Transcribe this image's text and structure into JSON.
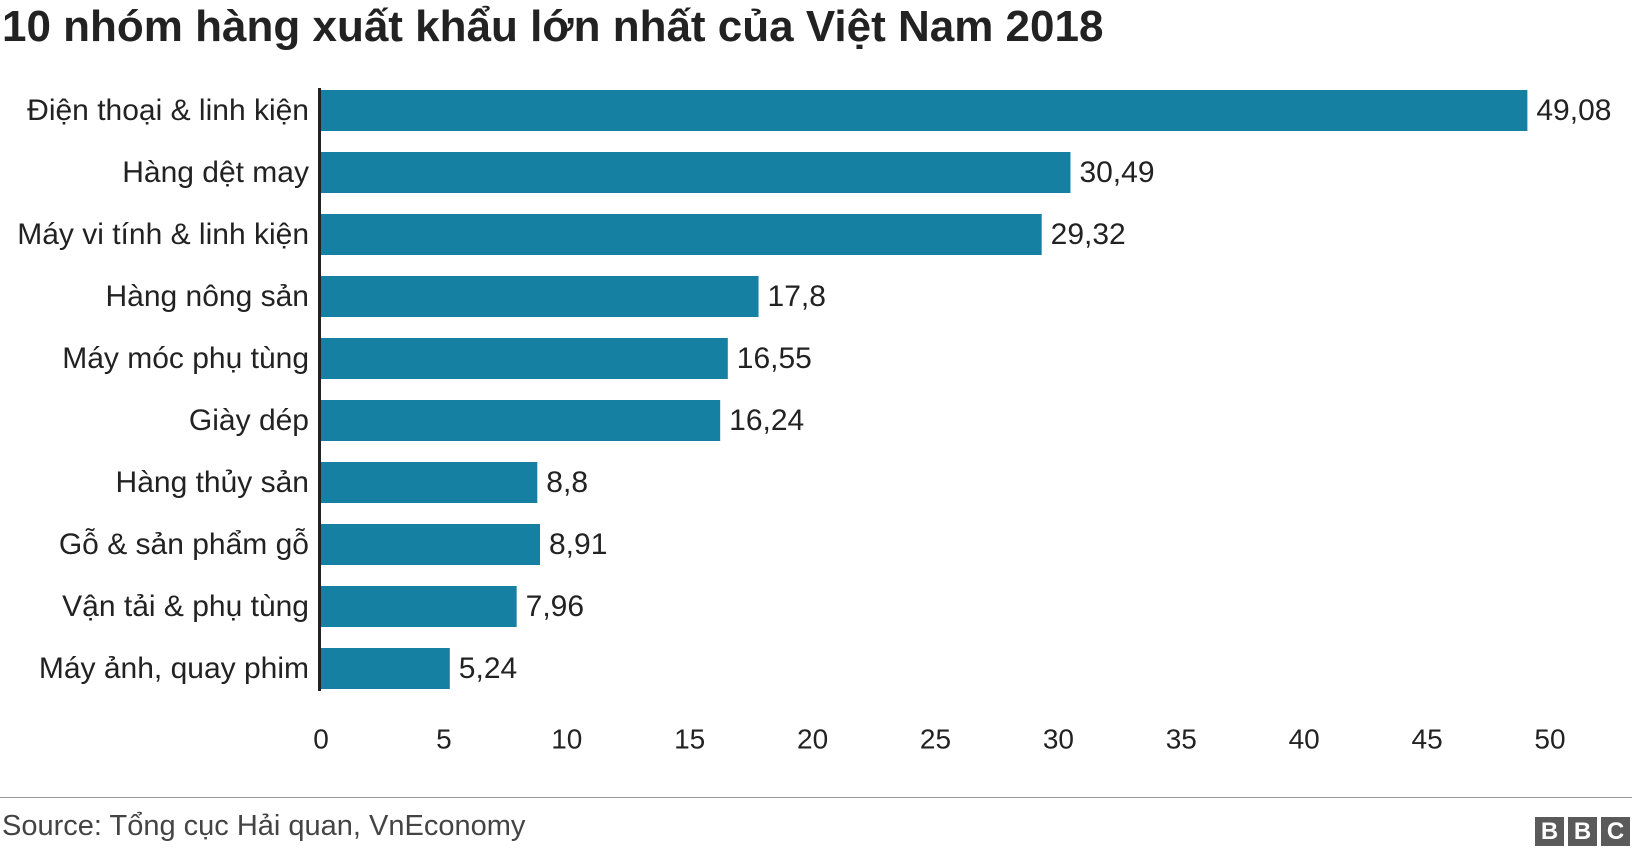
{
  "chart_data": {
    "type": "bar",
    "orientation": "horizontal",
    "title": "10 nhóm hàng xuất khẩu lớn nhất của Việt Nam 2018",
    "categories": [
      "Điện thoại & linh kiện",
      "Hàng dệt may",
      "Máy vi tính & linh kiện",
      "Hàng nông sản",
      "Máy móc phụ tùng",
      "Giày dép",
      "Hàng thủy sản",
      "Gỗ & sản phẩm gỗ",
      "Vận tải & phụ tùng",
      "Máy ảnh, quay phim"
    ],
    "values": [
      49.08,
      30.49,
      29.32,
      17.8,
      16.55,
      16.24,
      8.8,
      8.91,
      7.96,
      5.24
    ],
    "value_labels": [
      "49,08",
      "30,49",
      "29,32",
      "17,8",
      "16,55",
      "16,24",
      "8,8",
      "8,91",
      "7,96",
      "5,24"
    ],
    "xlim": [
      0,
      50
    ],
    "xticks": [
      0,
      5,
      10,
      15,
      20,
      25,
      30,
      35,
      40,
      45,
      50
    ],
    "bar_color": "#1580a2",
    "grid": false,
    "legend": "none"
  },
  "footer": {
    "source": "Source: Tổng cục Hải quan, VnEconomy",
    "logo_letters": [
      "B",
      "B",
      "C"
    ]
  }
}
